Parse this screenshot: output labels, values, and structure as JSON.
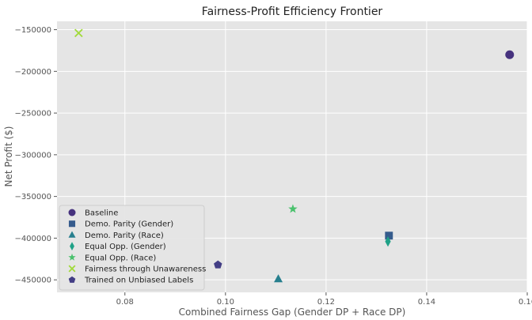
{
  "chart_data": {
    "type": "scatter",
    "title": "Fairness-Profit Efficiency Frontier",
    "xlabel": "Combined Fairness Gap (Gender DP + Race DP)",
    "ylabel": "Net Profit ($)",
    "xlim": [
      0.0665,
      0.16
    ],
    "ylim": [
      -465000,
      -140000
    ],
    "xticks": [
      0.08,
      0.1,
      0.12,
      0.14,
      0.16
    ],
    "xtick_labels": [
      "0.08",
      "0.10",
      "0.12",
      "0.14",
      "0.16"
    ],
    "yticks": [
      -450000,
      -400000,
      -350000,
      -300000,
      -250000,
      -200000,
      -150000
    ],
    "ytick_labels": [
      "−450000",
      "−400000",
      "−350000",
      "−300000",
      "−250000",
      "−200000",
      "−150000"
    ],
    "grid": true,
    "legend_position": "bottom-left",
    "series": [
      {
        "name": "Baseline",
        "marker": "circle",
        "color": "#46327e",
        "x": 0.1565,
        "y": -180000
      },
      {
        "name": "Demo. Parity (Gender)",
        "marker": "square",
        "color": "#365c8d",
        "x": 0.1325,
        "y": -397000
      },
      {
        "name": "Demo. Parity (Race)",
        "marker": "triangle",
        "color": "#277f8e",
        "x": 0.1105,
        "y": -449000
      },
      {
        "name": "Equal Opp. (Gender)",
        "marker": "diamond",
        "color": "#1fa187",
        "x": 0.1323,
        "y": -404000
      },
      {
        "name": "Equal Opp. (Race)",
        "marker": "star",
        "color": "#4ac16d",
        "x": 0.1134,
        "y": -365000
      },
      {
        "name": "Fairness through Unawareness",
        "marker": "x",
        "color": "#a0da39",
        "x": 0.0708,
        "y": -154000
      },
      {
        "name": "Trained on Unbiased Labels",
        "marker": "pentagon",
        "color": "#433e85",
        "x": 0.0985,
        "y": -432000
      }
    ]
  }
}
